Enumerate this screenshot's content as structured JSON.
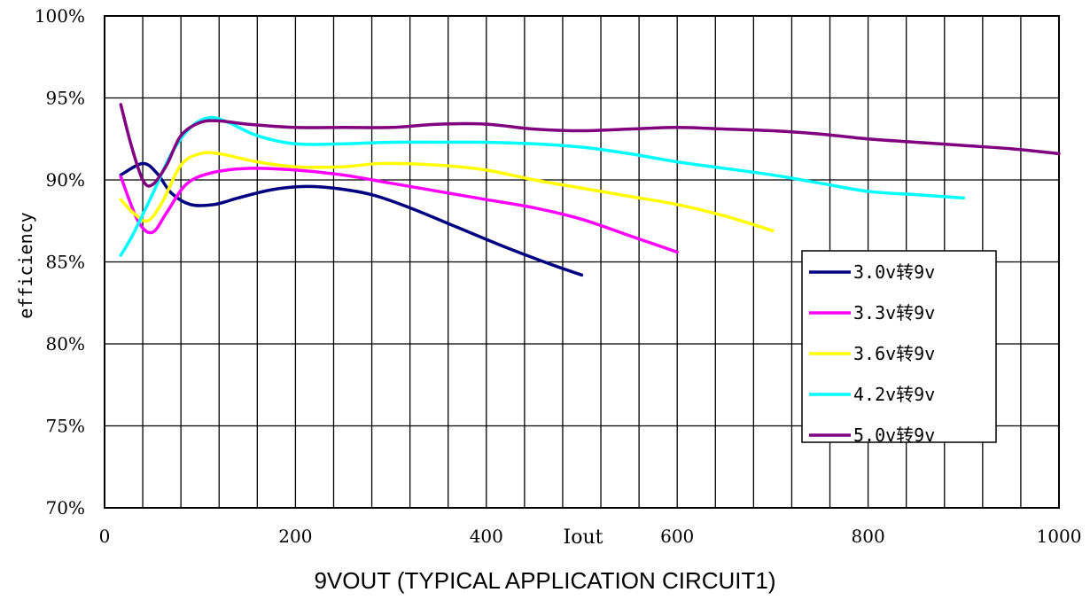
{
  "caption": "9VOUT (TYPICAL APPLICATION CIRCUIT1)",
  "chart_data": {
    "type": "line",
    "title": "",
    "xlabel": "Iout",
    "ylabel": "efficiency",
    "xlim": [
      0,
      1000
    ],
    "ylim": [
      70,
      100
    ],
    "x_ticks": [
      0,
      200,
      400,
      600,
      800,
      1000
    ],
    "x_tick_labels": [
      "0",
      "200",
      "400",
      "600",
      "800",
      "1000"
    ],
    "y_ticks": [
      70,
      75,
      80,
      85,
      90,
      95,
      100
    ],
    "y_tick_labels": [
      "70%",
      "75%",
      "80%",
      "85%",
      "90%",
      "95%",
      "100%"
    ],
    "grid": true,
    "legend_position": "right",
    "series": [
      {
        "name": "3.0v转9v",
        "color": "#000080",
        "x": [
          17,
          40,
          55,
          70,
          90,
          115,
          140,
          175,
          210,
          240,
          280,
          320,
          370,
          420,
          470,
          500
        ],
        "y": [
          90.3,
          91.0,
          90.4,
          89.2,
          88.5,
          88.5,
          88.9,
          89.4,
          89.6,
          89.5,
          89.1,
          88.3,
          87.1,
          85.9,
          84.8,
          84.2
        ]
      },
      {
        "name": "3.3v转9v",
        "color": "#ff00ff",
        "x": [
          17,
          35,
          50,
          65,
          85,
          110,
          150,
          200,
          250,
          300,
          350,
          400,
          450,
          500,
          550,
          600
        ],
        "y": [
          90.2,
          87.5,
          86.8,
          88.0,
          89.7,
          90.4,
          90.7,
          90.6,
          90.3,
          89.8,
          89.3,
          88.8,
          88.3,
          87.6,
          86.6,
          85.6
        ]
      },
      {
        "name": "3.6v转9v",
        "color": "#ffff00",
        "x": [
          17,
          30,
          45,
          60,
          80,
          100,
          120,
          160,
          200,
          250,
          290,
          350,
          400,
          450,
          500,
          550,
          600,
          650,
          700
        ],
        "y": [
          88.8,
          88.0,
          87.5,
          88.6,
          90.9,
          91.6,
          91.6,
          91.1,
          90.8,
          90.8,
          91.0,
          90.9,
          90.6,
          90.0,
          89.5,
          89.0,
          88.5,
          87.8,
          86.9
        ]
      },
      {
        "name": "4.2v转9v",
        "color": "#00ffff",
        "x": [
          17,
          30,
          50,
          70,
          90,
          110,
          130,
          160,
          200,
          250,
          300,
          350,
          400,
          450,
          500,
          550,
          600,
          650,
          700,
          750,
          800,
          850,
          900
        ],
        "y": [
          85.4,
          86.7,
          89.1,
          91.6,
          93.2,
          93.8,
          93.5,
          92.7,
          92.2,
          92.2,
          92.3,
          92.3,
          92.3,
          92.2,
          92.0,
          91.6,
          91.1,
          90.7,
          90.3,
          89.8,
          89.3,
          89.1,
          88.9
        ]
      },
      {
        "name": "5.0v转9v",
        "color": "#800080",
        "x": [
          17,
          28,
          40,
          50,
          65,
          80,
          100,
          120,
          150,
          200,
          250,
          300,
          350,
          400,
          450,
          500,
          550,
          600,
          650,
          700,
          750,
          800,
          850,
          900,
          950,
          1000
        ],
        "y": [
          94.6,
          92.1,
          90.0,
          89.7,
          90.9,
          92.7,
          93.5,
          93.6,
          93.4,
          93.2,
          93.2,
          93.2,
          93.4,
          93.4,
          93.1,
          93.0,
          93.1,
          93.2,
          93.1,
          93.0,
          92.8,
          92.5,
          92.3,
          92.1,
          91.9,
          91.6
        ]
      }
    ]
  }
}
